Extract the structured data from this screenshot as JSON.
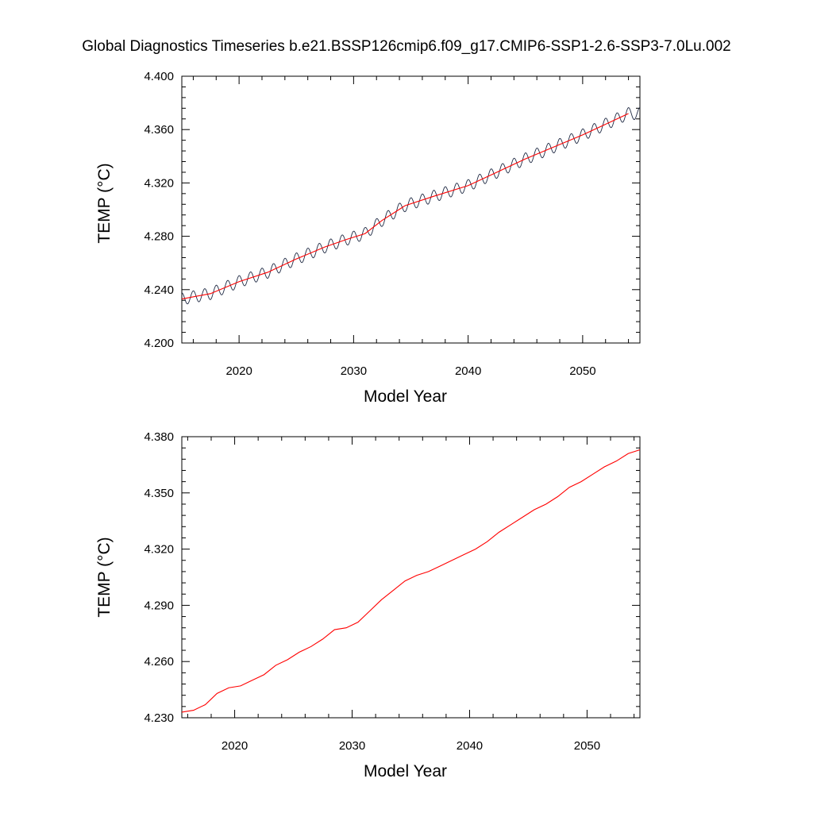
{
  "title": "Global Diagnostics Timeseries b.e21.BSSP126cmip6.f09_g17.CMIP6-SSP1-2.6-SSP3-7.0Lu.002",
  "chart_data": [
    {
      "type": "line",
      "xlabel": "Model Year",
      "ylabel": "TEMP (°C)",
      "xlim": [
        2015,
        2055
      ],
      "ylim": [
        4.2,
        4.4
      ],
      "xticks": [
        2020,
        2030,
        2040,
        2050
      ],
      "xtick_labels": [
        "2020",
        "2030",
        "2040",
        "2050"
      ],
      "yticks": [
        4.2,
        4.24,
        4.28,
        4.32,
        4.36,
        4.4
      ],
      "ytick_labels": [
        "4.200",
        "4.240",
        "4.280",
        "4.320",
        "4.360",
        "4.400"
      ],
      "x_minor_step": 2,
      "y_minor_step": 0.008,
      "grid": false,
      "series": [
        {
          "kind": "monthly",
          "color": "#1f2a44",
          "seasonal_amplitude": 0.0045,
          "trend": {
            "x": [
              2015.0,
              2017.5,
              2020.0,
              2022.5,
              2025.0,
              2027.5,
              2029.5,
              2031.0,
              2032.5,
              2034.5,
              2037.0,
              2040.0,
              2042.5,
              2045.0,
              2047.5,
              2050.0,
              2052.5,
              2054.0
            ],
            "y": [
              4.233,
              4.237,
              4.246,
              4.253,
              4.263,
              4.272,
              4.278,
              4.282,
              4.292,
              4.303,
              4.31,
              4.318,
              4.328,
              4.338,
              4.347,
              4.356,
              4.366,
              4.372
            ]
          },
          "last_x": 2055.0
        },
        {
          "kind": "annual",
          "color": "#ff0000",
          "x": [
            2015.0,
            2017.5,
            2020.0,
            2022.5,
            2025.0,
            2027.5,
            2029.5,
            2031.0,
            2032.5,
            2034.5,
            2037.0,
            2040.0,
            2042.5,
            2045.0,
            2047.5,
            2050.0,
            2052.5,
            2054.0
          ],
          "y": [
            4.233,
            4.237,
            4.246,
            4.253,
            4.263,
            4.272,
            4.278,
            4.282,
            4.292,
            4.303,
            4.31,
            4.318,
            4.328,
            4.338,
            4.347,
            4.356,
            4.366,
            4.372
          ]
        }
      ]
    },
    {
      "type": "line",
      "xlabel": "Model Year",
      "ylabel": "TEMP (°C)",
      "xlim": [
        2015.5,
        2054.5
      ],
      "ylim": [
        4.23,
        4.38
      ],
      "xticks": [
        2020,
        2030,
        2040,
        2050
      ],
      "xtick_labels": [
        "2020",
        "2030",
        "2040",
        "2050"
      ],
      "yticks": [
        4.23,
        4.26,
        4.29,
        4.32,
        4.35,
        4.38
      ],
      "ytick_labels": [
        "4.230",
        "4.260",
        "4.290",
        "4.320",
        "4.350",
        "4.380"
      ],
      "x_minor_step": 2,
      "y_minor_step": 0.006,
      "grid": false,
      "series": [
        {
          "kind": "annual",
          "color": "#ff0000",
          "x": [
            2015.5,
            2016.5,
            2017.5,
            2018.5,
            2019.5,
            2020.5,
            2021.5,
            2022.5,
            2023.5,
            2024.5,
            2025.5,
            2026.5,
            2027.5,
            2028.5,
            2029.5,
            2030.5,
            2031.5,
            2032.5,
            2033.5,
            2034.5,
            2035.5,
            2036.5,
            2037.5,
            2038.5,
            2039.5,
            2040.5,
            2041.5,
            2042.5,
            2043.5,
            2044.5,
            2045.5,
            2046.5,
            2047.5,
            2048.5,
            2049.5,
            2050.5,
            2051.5,
            2052.5,
            2053.5,
            2054.5
          ],
          "y": [
            4.233,
            4.234,
            4.237,
            4.243,
            4.246,
            4.247,
            4.25,
            4.253,
            4.258,
            4.261,
            4.265,
            4.268,
            4.272,
            4.277,
            4.278,
            4.281,
            4.287,
            4.293,
            4.298,
            4.303,
            4.306,
            4.308,
            4.311,
            4.314,
            4.317,
            4.32,
            4.324,
            4.329,
            4.333,
            4.337,
            4.341,
            4.344,
            4.348,
            4.353,
            4.356,
            4.36,
            4.364,
            4.367,
            4.371,
            4.373
          ]
        }
      ]
    }
  ]
}
